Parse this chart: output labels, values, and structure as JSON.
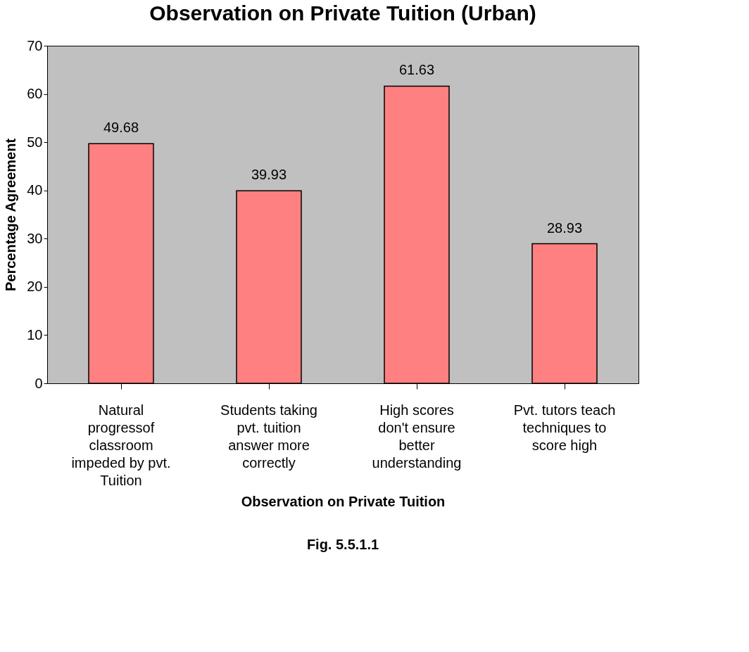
{
  "chart_data": {
    "type": "bar",
    "title": "Observation on Private Tuition (Urban)",
    "xlabel": "Observation on Private Tuition",
    "ylabel": "Percentage Agreement",
    "categories": [
      "Natural\nprogressof\nclassroom\nimpeded by pvt.\nTuition",
      "Students taking\npvt. tuition\nanswer more\ncorrectly",
      "High scores\ndon't ensure\nbetter\nunderstanding",
      "Pvt. tutors teach\ntechniques to\nscore high"
    ],
    "values": [
      49.68,
      39.93,
      61.63,
      28.93
    ],
    "color": "#ff8080",
    "ylim": [
      0,
      70
    ],
    "yticks": [
      0,
      10,
      20,
      30,
      40,
      50,
      60,
      70
    ],
    "grid": false,
    "data_labels": true,
    "annotations": [
      "Fig. 5.5.1.1"
    ]
  }
}
